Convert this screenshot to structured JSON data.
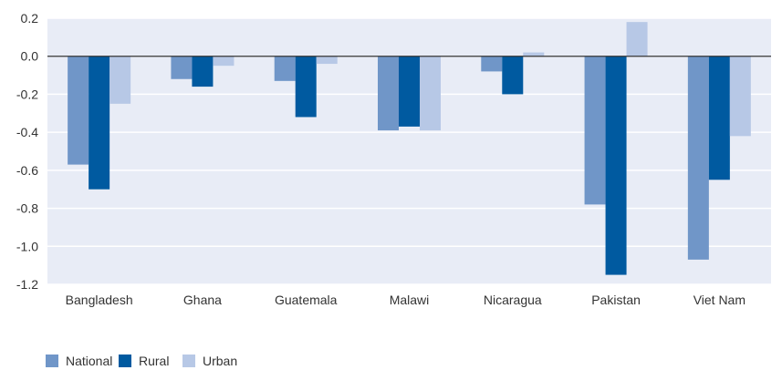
{
  "chart_data": {
    "type": "bar",
    "categories": [
      "Bangladesh",
      "Ghana",
      "Guatemala",
      "Malawi",
      "Nicaragua",
      "Pakistan",
      "Viet Nam"
    ],
    "series": [
      {
        "name": "National",
        "color": "#7096c8",
        "values": [
          -0.57,
          -0.12,
          -0.13,
          -0.39,
          -0.08,
          -0.78,
          -1.07
        ]
      },
      {
        "name": "Rural",
        "color": "#005aa0",
        "values": [
          -0.7,
          -0.16,
          -0.32,
          -0.37,
          -0.2,
          -1.15,
          -0.65
        ]
      },
      {
        "name": "Urban",
        "color": "#b7c8e6",
        "values": [
          -0.25,
          -0.05,
          -0.04,
          -0.39,
          0.02,
          0.18,
          -0.42
        ]
      }
    ],
    "ylim": [
      -1.2,
      0.2
    ],
    "yticks": [
      0.2,
      0.0,
      -0.2,
      -0.4,
      -0.6,
      -0.8,
      -1.0,
      -1.2
    ],
    "ytick_labels": [
      "0.2",
      "0.0",
      "-0.2",
      "-0.4",
      "-0.6",
      "-0.8",
      "-1.0",
      "-1.2"
    ],
    "grid": true,
    "legend_position": "bottom-left",
    "background_color": "#e8ecf6",
    "zero_line_color": "#333333"
  }
}
